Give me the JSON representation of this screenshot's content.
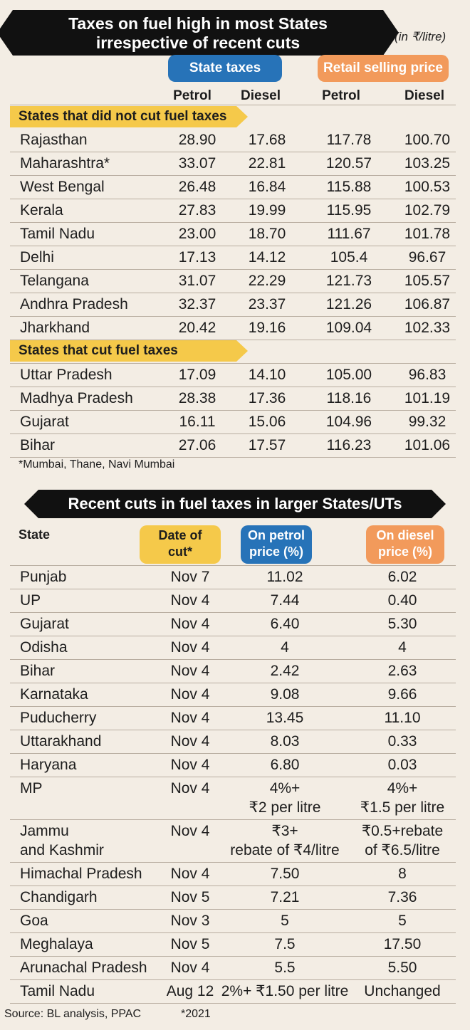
{
  "title": {
    "line1": "Taxes on fuel high in most States",
    "line2": "irrespective of recent cuts"
  },
  "unit": "(in ₹/litre)",
  "table1": {
    "group_headers": {
      "state_taxes": "State taxes",
      "retail_price": "Retail selling price"
    },
    "col_headers": [
      "Petrol",
      "Diesel",
      "Petrol",
      "Diesel"
    ],
    "section1": "States that did not cut fuel taxes",
    "rows1": [
      [
        "Rajasthan",
        "28.90",
        "17.68",
        "117.78",
        "100.70"
      ],
      [
        "Maharashtra*",
        "33.07",
        "22.81",
        "120.57",
        "103.25"
      ],
      [
        "West Bengal",
        "26.48",
        "16.84",
        "115.88",
        "100.53"
      ],
      [
        "Kerala",
        "27.83",
        "19.99",
        "115.95",
        "102.79"
      ],
      [
        "Tamil Nadu",
        "23.00",
        "18.70",
        "111.67",
        "101.78"
      ],
      [
        "Delhi",
        "17.13",
        "14.12",
        "105.4",
        "96.67"
      ],
      [
        "Telangana",
        "31.07",
        "22.29",
        "121.73",
        "105.57"
      ],
      [
        "Andhra Pradesh",
        "32.37",
        "23.37",
        "121.26",
        "106.87"
      ],
      [
        "Jharkhand",
        "20.42",
        "19.16",
        "109.04",
        "102.33"
      ]
    ],
    "section2": "States that cut fuel taxes",
    "rows2": [
      [
        "Uttar Pradesh",
        "17.09",
        "14.10",
        "105.00",
        "96.83"
      ],
      [
        "Madhya Pradesh",
        "28.38",
        "17.36",
        "118.16",
        "101.19"
      ],
      [
        "Gujarat",
        "16.11",
        "15.06",
        "104.96",
        "99.32"
      ],
      [
        "Bihar",
        "27.06",
        "17.57",
        "116.23",
        "101.06"
      ]
    ],
    "note": "*Mumbai, Thane, Navi Mumbai"
  },
  "table2": {
    "title": "Recent cuts in fuel taxes in larger States/UTs",
    "headers": {
      "state": "State",
      "date": [
        "Date of",
        "cut*"
      ],
      "petrol": [
        "On petrol",
        "price (%)"
      ],
      "diesel": [
        "On diesel",
        "price (%)"
      ]
    },
    "rows": [
      {
        "state": [
          "Punjab"
        ],
        "date": "Nov 7",
        "petrol": [
          "11.02"
        ],
        "diesel": [
          "6.02"
        ]
      },
      {
        "state": [
          "UP"
        ],
        "date": "Nov 4",
        "petrol": [
          "7.44"
        ],
        "diesel": [
          "0.40"
        ]
      },
      {
        "state": [
          "Gujarat"
        ],
        "date": "Nov 4",
        "petrol": [
          "6.40"
        ],
        "diesel": [
          "5.30"
        ]
      },
      {
        "state": [
          "Odisha"
        ],
        "date": "Nov 4",
        "petrol": [
          "4"
        ],
        "diesel": [
          "4"
        ]
      },
      {
        "state": [
          "Bihar"
        ],
        "date": "Nov 4",
        "petrol": [
          "2.42"
        ],
        "diesel": [
          "2.63"
        ]
      },
      {
        "state": [
          "Karnataka"
        ],
        "date": "Nov 4",
        "petrol": [
          "9.08"
        ],
        "diesel": [
          "9.66"
        ]
      },
      {
        "state": [
          "Puducherry"
        ],
        "date": "Nov 4",
        "petrol": [
          "13.45"
        ],
        "diesel": [
          "11.10"
        ]
      },
      {
        "state": [
          "Uttarakhand"
        ],
        "date": "Nov 4",
        "petrol": [
          "8.03"
        ],
        "diesel": [
          "0.33"
        ]
      },
      {
        "state": [
          "Haryana"
        ],
        "date": "Nov 4",
        "petrol": [
          "6.80"
        ],
        "diesel": [
          "0.03"
        ]
      },
      {
        "state": [
          "MP"
        ],
        "date": "Nov 4",
        "petrol": [
          "4%+",
          "₹2 per litre"
        ],
        "diesel": [
          "4%+",
          "₹1.5 per litre"
        ]
      },
      {
        "state": [
          "Jammu",
          "and Kashmir"
        ],
        "date": "Nov 4",
        "petrol": [
          "₹3+",
          "rebate of ₹4/litre"
        ],
        "diesel": [
          "₹0.5+rebate",
          "of ₹6.5/litre"
        ]
      },
      {
        "state": [
          "Himachal Pradesh"
        ],
        "date": "Nov 4",
        "petrol": [
          "7.50"
        ],
        "diesel": [
          "8"
        ]
      },
      {
        "state": [
          "Chandigarh"
        ],
        "date": "Nov 5",
        "petrol": [
          "7.21"
        ],
        "diesel": [
          "7.36"
        ]
      },
      {
        "state": [
          "Goa"
        ],
        "date": "Nov 3",
        "petrol": [
          "5"
        ],
        "diesel": [
          "5"
        ]
      },
      {
        "state": [
          "Meghalaya"
        ],
        "date": "Nov 5",
        "petrol": [
          "7.5"
        ],
        "diesel": [
          "17.50"
        ]
      },
      {
        "state": [
          "Arunachal Pradesh"
        ],
        "date": "Nov 4",
        "petrol": [
          "5.5"
        ],
        "diesel": [
          "5.50"
        ]
      },
      {
        "state": [
          "Tamil Nadu"
        ],
        "date": "Aug 12",
        "petrol": [
          "2%+ ₹1.50 per litre"
        ],
        "diesel": [
          "Unchanged"
        ]
      }
    ]
  },
  "source": "Source: BL analysis, PPAC",
  "footnote": "*2021",
  "colors": {
    "blue": "#2773b8",
    "orange": "#f29a5b",
    "yellow": "#f5c94a",
    "background": "#f3ede4"
  }
}
